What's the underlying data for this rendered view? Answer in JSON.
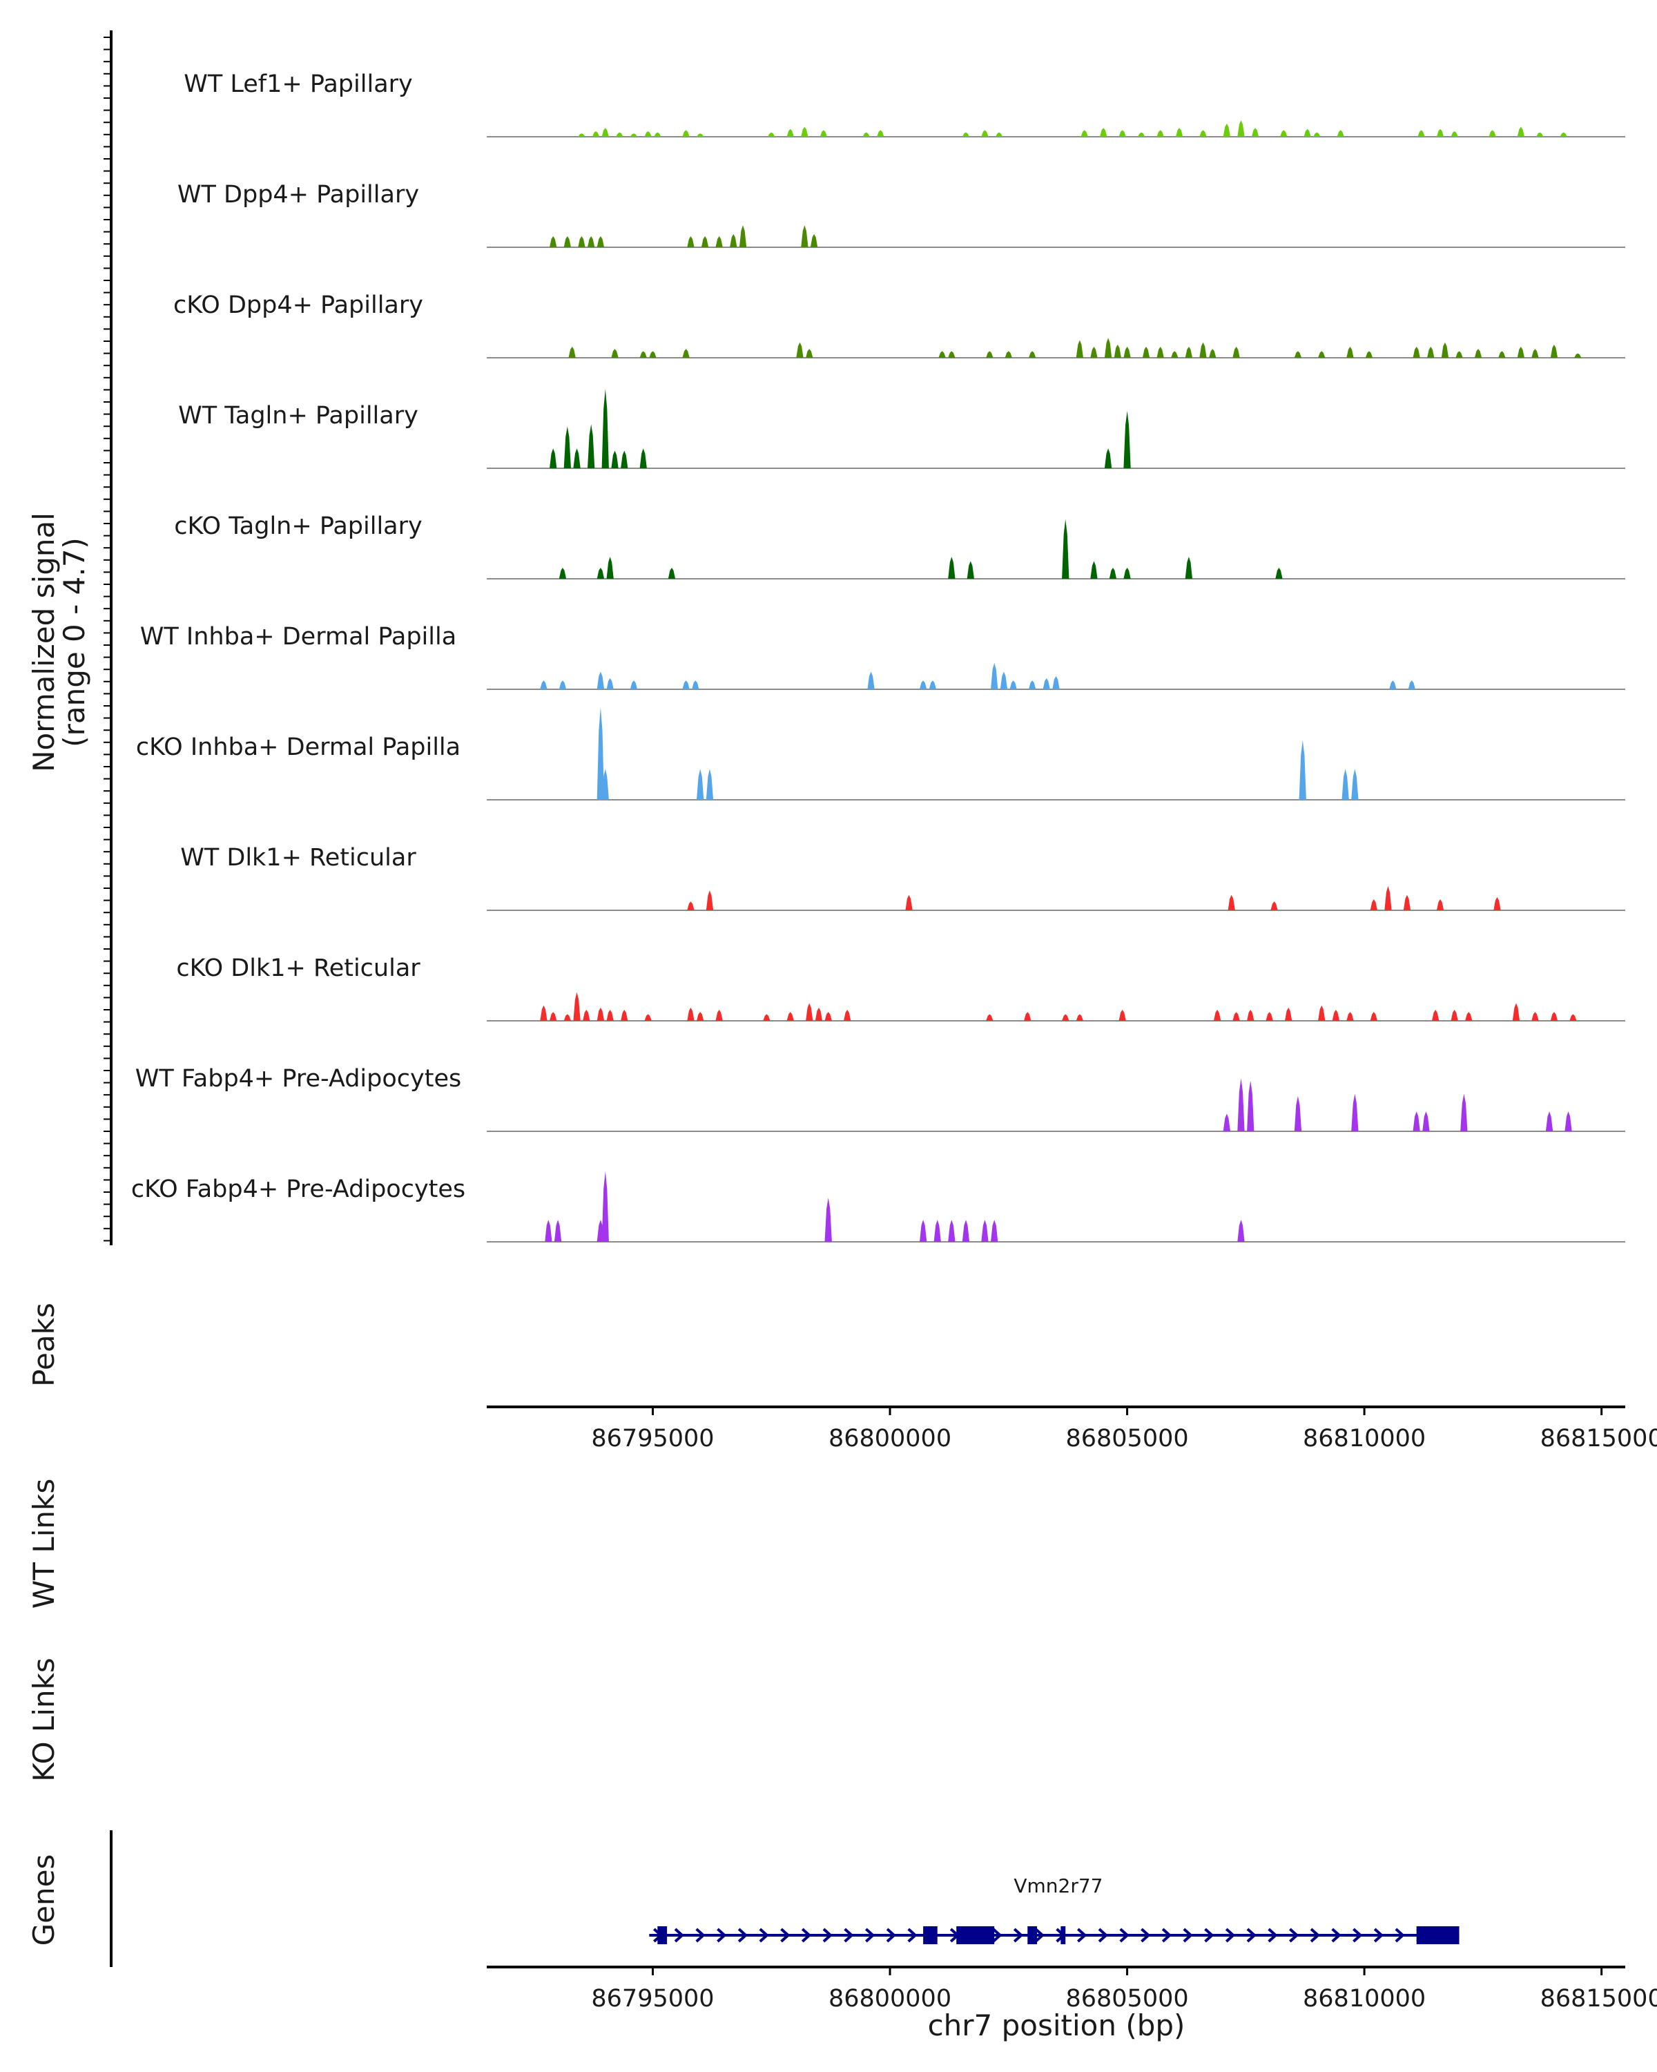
{
  "chart_data": {
    "type": "area",
    "title": "",
    "region": {
      "chromosome": "chr7",
      "start": 86791500,
      "end": 86815500
    },
    "signal_panel": {
      "ylabel_line1": "Normalized signal",
      "ylabel_line2": "(range 0 - 4.7)",
      "ylim": [
        0,
        4.7
      ]
    },
    "tracks": [
      {
        "name": "WT Lef1+ Papillary",
        "color": "#6ACC0A",
        "peaks": [
          [
            86793500,
            0.15
          ],
          [
            86793800,
            0.25
          ],
          [
            86794000,
            0.4
          ],
          [
            86794300,
            0.2
          ],
          [
            86794600,
            0.15
          ],
          [
            86794900,
            0.25
          ],
          [
            86795100,
            0.2
          ],
          [
            86795700,
            0.3
          ],
          [
            86796000,
            0.15
          ],
          [
            86797500,
            0.2
          ],
          [
            86797900,
            0.35
          ],
          [
            86798200,
            0.45
          ],
          [
            86798600,
            0.3
          ],
          [
            86799500,
            0.2
          ],
          [
            86799800,
            0.3
          ],
          [
            86801600,
            0.2
          ],
          [
            86802000,
            0.3
          ],
          [
            86802300,
            0.2
          ],
          [
            86804100,
            0.3
          ],
          [
            86804500,
            0.4
          ],
          [
            86804900,
            0.3
          ],
          [
            86805300,
            0.2
          ],
          [
            86805700,
            0.3
          ],
          [
            86806100,
            0.4
          ],
          [
            86806600,
            0.3
          ],
          [
            86807100,
            0.6
          ],
          [
            86807400,
            0.75
          ],
          [
            86807700,
            0.4
          ],
          [
            86808300,
            0.3
          ],
          [
            86808800,
            0.35
          ],
          [
            86809000,
            0.2
          ],
          [
            86809500,
            0.3
          ],
          [
            86811200,
            0.3
          ],
          [
            86811600,
            0.35
          ],
          [
            86811900,
            0.25
          ],
          [
            86812700,
            0.3
          ],
          [
            86813300,
            0.45
          ],
          [
            86813700,
            0.2
          ],
          [
            86814200,
            0.2
          ]
        ]
      },
      {
        "name": "WT Dpp4+ Papillary",
        "color": "#4A8A00",
        "peaks": [
          [
            86792900,
            0.5
          ],
          [
            86793200,
            0.5
          ],
          [
            86793500,
            0.5
          ],
          [
            86793700,
            0.5
          ],
          [
            86793900,
            0.5
          ],
          [
            86795800,
            0.5
          ],
          [
            86796100,
            0.5
          ],
          [
            86796400,
            0.5
          ],
          [
            86796700,
            0.6
          ],
          [
            86796900,
            1.0
          ],
          [
            86798200,
            1.0
          ],
          [
            86798400,
            0.6
          ]
        ]
      },
      {
        "name": "cKO Dpp4+ Papillary",
        "color": "#4A8A00",
        "peaks": [
          [
            86793300,
            0.5
          ],
          [
            86794200,
            0.4
          ],
          [
            86794800,
            0.3
          ],
          [
            86795000,
            0.3
          ],
          [
            86795700,
            0.4
          ],
          [
            86798100,
            0.7
          ],
          [
            86798300,
            0.4
          ],
          [
            86801100,
            0.3
          ],
          [
            86801300,
            0.3
          ],
          [
            86802100,
            0.3
          ],
          [
            86802500,
            0.3
          ],
          [
            86803000,
            0.3
          ],
          [
            86804000,
            0.8
          ],
          [
            86804300,
            0.5
          ],
          [
            86804600,
            0.9
          ],
          [
            86804800,
            0.6
          ],
          [
            86805000,
            0.5
          ],
          [
            86805400,
            0.5
          ],
          [
            86805700,
            0.5
          ],
          [
            86806000,
            0.3
          ],
          [
            86806300,
            0.5
          ],
          [
            86806600,
            0.7
          ],
          [
            86806800,
            0.4
          ],
          [
            86807300,
            0.5
          ],
          [
            86808600,
            0.3
          ],
          [
            86809100,
            0.3
          ],
          [
            86809700,
            0.5
          ],
          [
            86810100,
            0.3
          ],
          [
            86811100,
            0.5
          ],
          [
            86811400,
            0.5
          ],
          [
            86811700,
            0.7
          ],
          [
            86812000,
            0.3
          ],
          [
            86812400,
            0.4
          ],
          [
            86812900,
            0.3
          ],
          [
            86813300,
            0.5
          ],
          [
            86813600,
            0.4
          ],
          [
            86814000,
            0.6
          ],
          [
            86814500,
            0.2
          ]
        ]
      },
      {
        "name": "WT Tagln+ Papillary",
        "color": "#006400",
        "peaks": [
          [
            86792900,
            0.9
          ],
          [
            86793200,
            1.9
          ],
          [
            86793400,
            0.9
          ],
          [
            86793700,
            2.0
          ],
          [
            86794000,
            3.6
          ],
          [
            86794200,
            0.8
          ],
          [
            86794400,
            0.8
          ],
          [
            86794800,
            0.9
          ],
          [
            86804600,
            0.9
          ],
          [
            86805000,
            2.6
          ]
        ]
      },
      {
        "name": "cKO Tagln+ Papillary",
        "color": "#006400",
        "peaks": [
          [
            86793100,
            0.5
          ],
          [
            86793900,
            0.5
          ],
          [
            86794100,
            1.0
          ],
          [
            86795400,
            0.5
          ],
          [
            86801300,
            1.0
          ],
          [
            86801700,
            0.8
          ],
          [
            86803700,
            2.7
          ],
          [
            86804300,
            0.8
          ],
          [
            86804700,
            0.5
          ],
          [
            86805000,
            0.5
          ],
          [
            86806300,
            1.0
          ],
          [
            86808200,
            0.5
          ]
        ]
      },
      {
        "name": "WT Inhba+ Dermal Papilla",
        "color": "#56A5E8",
        "peaks": [
          [
            86792700,
            0.4
          ],
          [
            86793100,
            0.4
          ],
          [
            86793900,
            0.8
          ],
          [
            86794100,
            0.5
          ],
          [
            86794600,
            0.4
          ],
          [
            86795700,
            0.4
          ],
          [
            86795900,
            0.4
          ],
          [
            86799600,
            0.8
          ],
          [
            86800700,
            0.4
          ],
          [
            86800900,
            0.4
          ],
          [
            86802200,
            1.2
          ],
          [
            86802400,
            0.8
          ],
          [
            86802600,
            0.4
          ],
          [
            86803000,
            0.4
          ],
          [
            86803300,
            0.5
          ],
          [
            86803500,
            0.6
          ],
          [
            86810600,
            0.4
          ],
          [
            86811000,
            0.4
          ]
        ]
      },
      {
        "name": "cKO Inhba+ Dermal Papilla",
        "color": "#56A5E8",
        "peaks": [
          [
            86793900,
            4.2
          ],
          [
            86794000,
            1.4
          ],
          [
            86796000,
            1.4
          ],
          [
            86796200,
            1.4
          ],
          [
            86808700,
            2.7
          ],
          [
            86809600,
            1.4
          ],
          [
            86809800,
            1.4
          ]
        ]
      },
      {
        "name": "WT Dlk1+ Reticular",
        "color": "#F52C2C",
        "peaks": [
          [
            86795800,
            0.4
          ],
          [
            86796200,
            0.9
          ],
          [
            86800400,
            0.7
          ],
          [
            86807200,
            0.7
          ],
          [
            86808100,
            0.4
          ],
          [
            86810200,
            0.5
          ],
          [
            86810500,
            1.1
          ],
          [
            86810900,
            0.7
          ],
          [
            86811600,
            0.5
          ],
          [
            86812800,
            0.6
          ]
        ]
      },
      {
        "name": "cKO Dlk1+ Reticular",
        "color": "#F52C2C",
        "peaks": [
          [
            86792700,
            0.7
          ],
          [
            86792900,
            0.4
          ],
          [
            86793200,
            0.3
          ],
          [
            86793400,
            1.3
          ],
          [
            86793600,
            0.5
          ],
          [
            86793900,
            0.6
          ],
          [
            86794100,
            0.5
          ],
          [
            86794400,
            0.5
          ],
          [
            86794900,
            0.3
          ],
          [
            86795800,
            0.6
          ],
          [
            86796000,
            0.4
          ],
          [
            86796400,
            0.5
          ],
          [
            86797400,
            0.3
          ],
          [
            86797900,
            0.4
          ],
          [
            86798300,
            0.8
          ],
          [
            86798500,
            0.6
          ],
          [
            86798700,
            0.4
          ],
          [
            86799100,
            0.5
          ],
          [
            86802100,
            0.3
          ],
          [
            86802900,
            0.4
          ],
          [
            86803700,
            0.3
          ],
          [
            86804000,
            0.3
          ],
          [
            86804900,
            0.5
          ],
          [
            86806900,
            0.5
          ],
          [
            86807300,
            0.4
          ],
          [
            86807600,
            0.5
          ],
          [
            86808000,
            0.4
          ],
          [
            86808400,
            0.6
          ],
          [
            86809100,
            0.7
          ],
          [
            86809400,
            0.5
          ],
          [
            86809700,
            0.4
          ],
          [
            86810200,
            0.4
          ],
          [
            86811500,
            0.5
          ],
          [
            86811900,
            0.5
          ],
          [
            86812200,
            0.4
          ],
          [
            86813200,
            0.8
          ],
          [
            86813600,
            0.4
          ],
          [
            86814000,
            0.4
          ],
          [
            86814400,
            0.3
          ]
        ]
      },
      {
        "name": "WT Fabp4+ Pre-Adipocytes",
        "color": "#A335EC",
        "peaks": [
          [
            86807100,
            0.8
          ],
          [
            86807400,
            2.4
          ],
          [
            86807600,
            2.3
          ],
          [
            86808600,
            1.6
          ],
          [
            86809800,
            1.7
          ],
          [
            86811100,
            0.9
          ],
          [
            86811300,
            0.9
          ],
          [
            86812100,
            1.7
          ],
          [
            86813900,
            0.9
          ],
          [
            86814300,
            0.9
          ]
        ]
      },
      {
        "name": "cKO Fabp4+ Pre-Adipocytes",
        "color": "#A335EC",
        "peaks": [
          [
            86792800,
            1.0
          ],
          [
            86793000,
            1.0
          ],
          [
            86793900,
            1.0
          ],
          [
            86794000,
            3.2
          ],
          [
            86798700,
            2.0
          ],
          [
            86800700,
            1.0
          ],
          [
            86801000,
            1.0
          ],
          [
            86801300,
            1.0
          ],
          [
            86801600,
            1.0
          ],
          [
            86802000,
            1.0
          ],
          [
            86802200,
            1.0
          ],
          [
            86807400,
            1.0
          ]
        ]
      }
    ],
    "peaks_panel": {
      "label": "Peaks"
    },
    "links_panels": [
      {
        "label": "WT Links"
      },
      {
        "label": "KO Links"
      }
    ],
    "genes_panel": {
      "label": "Genes",
      "genes": [
        {
          "name": "Vmn2r77",
          "start": 86795100,
          "end": 86812000,
          "strand": "+",
          "color": "#00008B",
          "exons": [
            [
              86795100,
              86795300
            ],
            [
              86800700,
              86801000
            ],
            [
              86801400,
              86802200
            ],
            [
              86802900,
              86803100
            ],
            [
              86803600,
              86803700
            ],
            [
              86811100,
              86812000
            ]
          ]
        }
      ]
    },
    "x_axis": {
      "label": "chr7 position (bp)",
      "ticks": [
        86795000,
        86800000,
        86805000,
        86810000,
        86815000
      ],
      "tick_labels": [
        "86795000",
        "86800000",
        "86805000",
        "86810000",
        "86815000"
      ]
    }
  }
}
